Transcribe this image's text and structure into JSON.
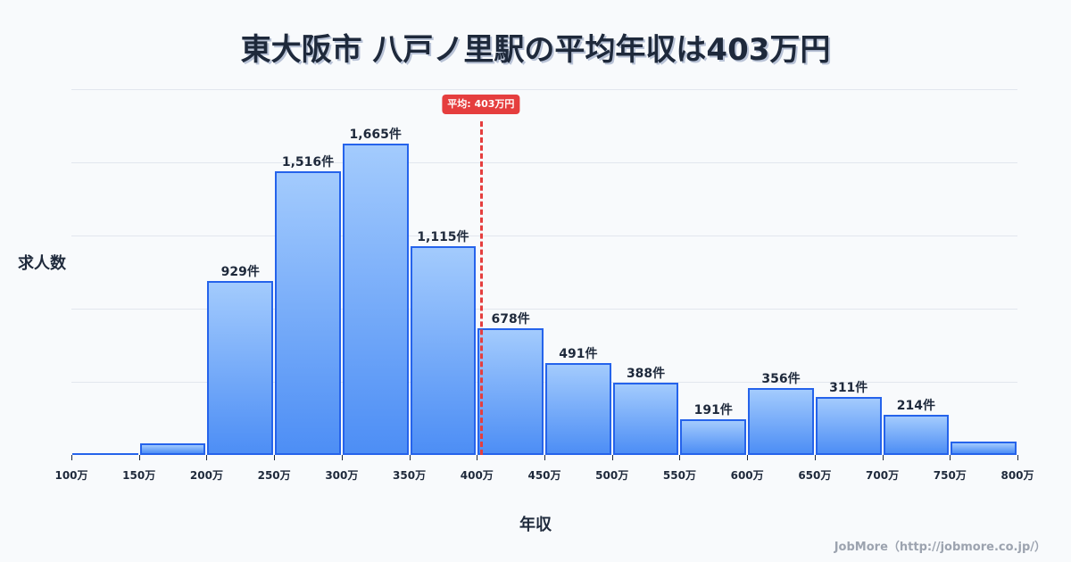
{
  "title": "東大阪市 八戸ノ里駅の平均年収は403万円",
  "y_axis_label": "求人数",
  "x_axis_label": "年収",
  "footer": "JobMore（http://jobmore.co.jp/）",
  "average": {
    "value": 403,
    "label": "平均: 403万円",
    "color": "#e53e3e"
  },
  "colors": {
    "bar_border": "#2563eb",
    "bar_top": "#a3cbfd",
    "bar_bottom": "#4d8ef5"
  },
  "chart_data": {
    "type": "bar",
    "title": "東大阪市 八戸ノ里駅の平均年収は403万円",
    "xlabel": "年収",
    "ylabel": "求人数",
    "categories": [
      "100-150万",
      "150-200万",
      "200-250万",
      "250-300万",
      "300-350万",
      "350-400万",
      "400-450万",
      "450-500万",
      "500-550万",
      "550-600万",
      "600-650万",
      "650-700万",
      "700-750万",
      "750-800万"
    ],
    "values": [
      3,
      62,
      929,
      1516,
      1665,
      1115,
      678,
      491,
      388,
      191,
      356,
      311,
      214,
      70
    ],
    "value_labels": [
      "",
      "",
      "929件",
      "1,516件",
      "1,665件",
      "1,115件",
      "678件",
      "491件",
      "388件",
      "191件",
      "356件",
      "311件",
      "214件",
      ""
    ],
    "x_ticks": [
      "100万",
      "150万",
      "200万",
      "250万",
      "300万",
      "350万",
      "400万",
      "450万",
      "500万",
      "550万",
      "600万",
      "650万",
      "700万",
      "750万",
      "800万"
    ],
    "ylim": [
      0,
      1955
    ],
    "grid": true,
    "annotations": [
      {
        "type": "vline",
        "x": 403,
        "label": "平均: 403万円"
      }
    ]
  }
}
